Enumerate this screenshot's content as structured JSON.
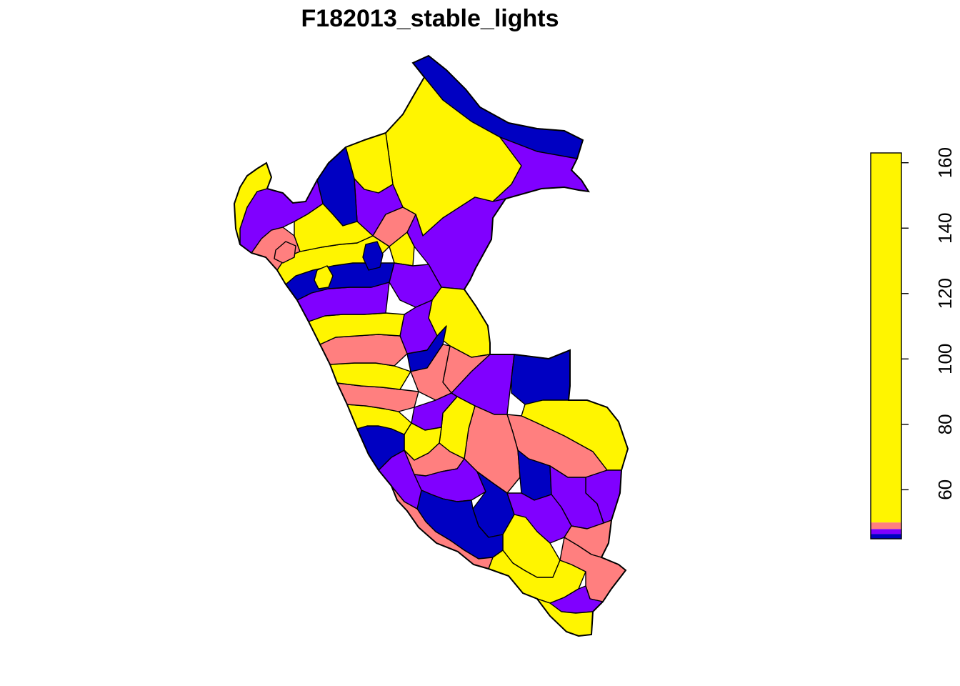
{
  "map": {
    "title": "F182013_stable_lights",
    "palette": {
      "dark_blue": "#0000C2",
      "purple": "#8000FF",
      "salmon": "#FF7F7F",
      "yellow": "#FFF500"
    },
    "regions": [
      {
        "color": "dark_blue"
      },
      {
        "color": "yellow"
      },
      {
        "color": "purple"
      },
      {
        "color": "yellow"
      },
      {
        "color": "purple"
      },
      {
        "color": "dark_blue"
      },
      {
        "color": "purple"
      },
      {
        "color": "salmon"
      },
      {
        "color": "yellow"
      },
      {
        "color": "purple"
      },
      {
        "color": "yellow"
      },
      {
        "color": "purple"
      },
      {
        "color": "dark_blue"
      },
      {
        "color": "salmon"
      },
      {
        "color": "purple"
      },
      {
        "color": "salmon"
      },
      {
        "color": "dark_blue"
      },
      {
        "color": "yellow"
      },
      {
        "color": "salmon"
      },
      {
        "color": "purple"
      },
      {
        "color": "salmon"
      },
      {
        "color": "yellow"
      },
      {
        "color": "dark_blue"
      },
      {
        "color": "purple"
      },
      {
        "color": "purple"
      },
      {
        "color": "yellow"
      },
      {
        "color": "salmon"
      },
      {
        "color": "purple"
      },
      {
        "color": "dark_blue"
      },
      {
        "color": "purple"
      },
      {
        "color": "yellow"
      },
      {
        "color": "salmon"
      },
      {
        "color": "dark_blue"
      },
      {
        "color": "salmon"
      },
      {
        "color": "yellow"
      },
      {
        "color": "salmon"
      },
      {
        "color": "purple"
      },
      {
        "color": "yellow"
      },
      {
        "color": "purple"
      },
      {
        "color": "dark_blue"
      },
      {
        "color": "yellow"
      },
      {
        "color": "salmon"
      },
      {
        "color": "yellow"
      },
      {
        "color": "salmon"
      },
      {
        "color": "yellow"
      },
      {
        "color": "purple"
      },
      {
        "color": "dark_blue"
      },
      {
        "color": "yellow"
      },
      {
        "color": "salmon"
      },
      {
        "color": "yellow"
      },
      {
        "color": "purple"
      },
      {
        "color": "yellow"
      },
      {
        "color": "salmon"
      },
      {
        "color": "yellow"
      },
      {
        "color": "dark_blue"
      }
    ]
  },
  "legend": {
    "range": [
      45,
      163
    ],
    "breaks": [
      {
        "from": 45,
        "to": 46.5,
        "color": "dark_blue"
      },
      {
        "from": 46.5,
        "to": 48,
        "color": "purple"
      },
      {
        "from": 48,
        "to": 50,
        "color": "salmon"
      },
      {
        "from": 50,
        "to": 163,
        "color": "yellow"
      }
    ],
    "ticks": [
      {
        "value": 60,
        "label": "60"
      },
      {
        "value": 80,
        "label": "80"
      },
      {
        "value": 100,
        "label": "100"
      },
      {
        "value": 120,
        "label": "120"
      },
      {
        "value": 140,
        "label": "140"
      },
      {
        "value": 160,
        "label": "160"
      }
    ]
  }
}
